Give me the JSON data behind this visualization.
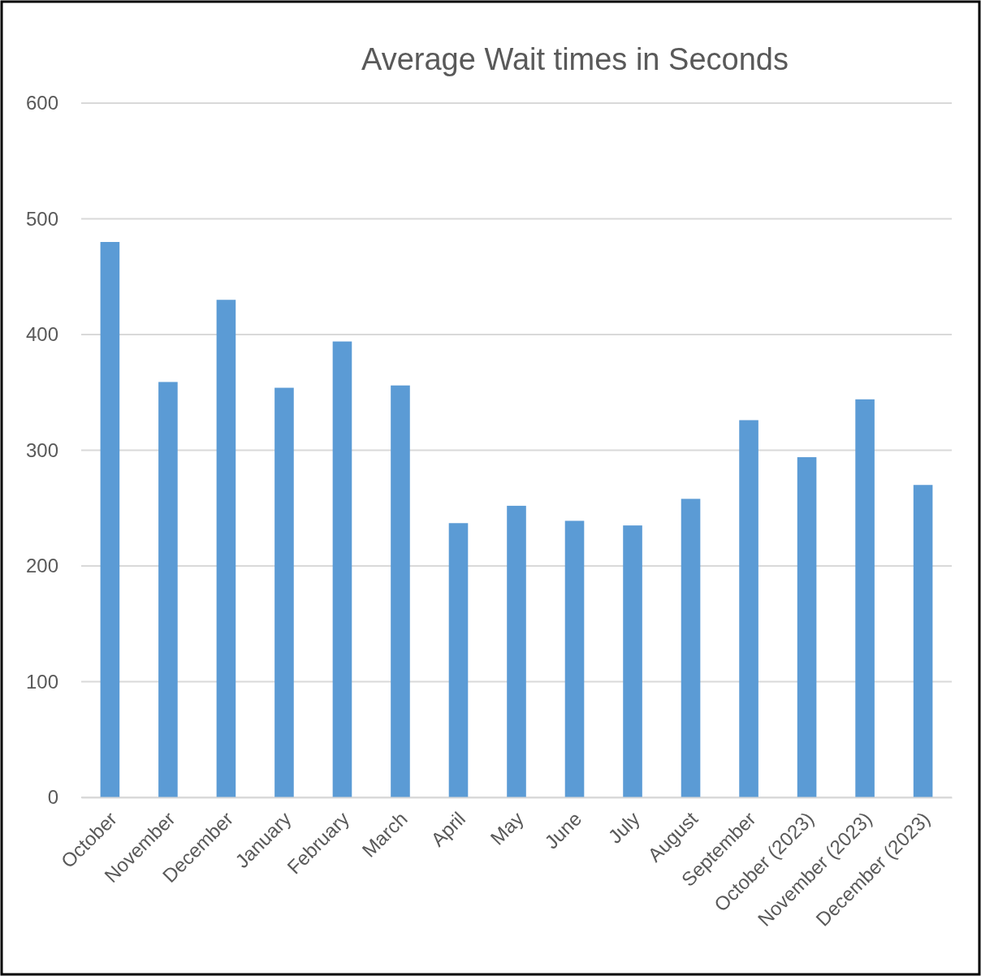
{
  "chart_data": {
    "type": "bar",
    "title": "Average Wait times in Seconds",
    "categories": [
      "October",
      "November",
      "December",
      "January",
      "February",
      "March",
      "April",
      "May",
      "June",
      "July",
      "August",
      "September",
      "October (2023)",
      "November (2023)",
      "December (2023)"
    ],
    "values": [
      480,
      359,
      430,
      354,
      394,
      356,
      237,
      252,
      239,
      235,
      258,
      326,
      294,
      344,
      270
    ],
    "color": "#5b9bd5",
    "ylim": [
      0,
      600
    ],
    "yticks": [
      0,
      100,
      200,
      300,
      400,
      500,
      600
    ],
    "grid": "y"
  }
}
